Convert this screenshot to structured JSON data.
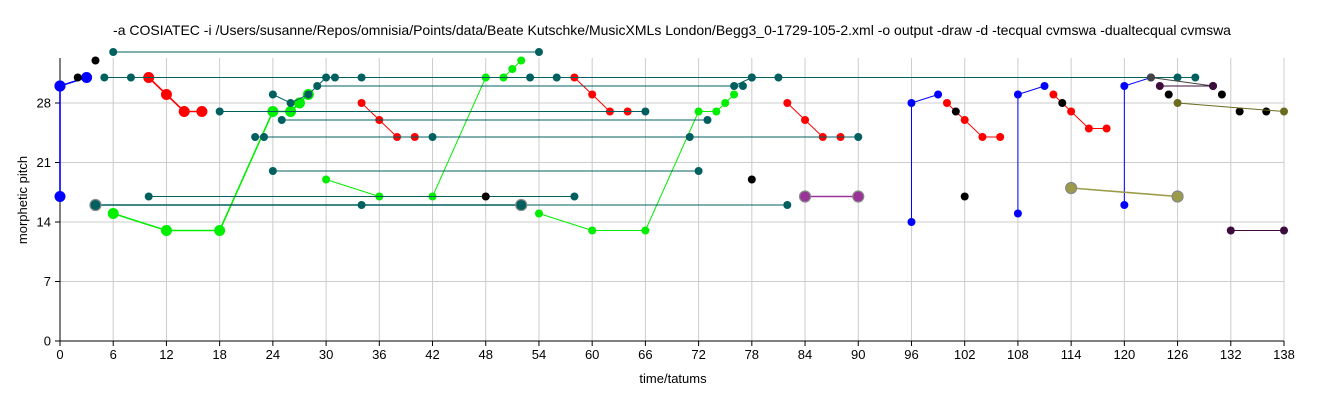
{
  "chart_data": {
    "type": "scatter",
    "title": "-a COSIATEC -i /Users/susanne/Repos/omnisia/Points/data/Beate Kutschke/MusicXMLs London/Begg3_0-1729-105-2.xml -o output -draw -d -tecqual cvmswa -dualtecqual cvmswa",
    "xlabel": "time/tatums",
    "ylabel": "morphetic pitch",
    "xlim": [
      0,
      138
    ],
    "ylim": [
      0,
      33
    ],
    "xticks": [
      0,
      6,
      12,
      18,
      24,
      30,
      36,
      42,
      48,
      54,
      60,
      66,
      72,
      78,
      84,
      90,
      96,
      102,
      108,
      114,
      120,
      126,
      132,
      138
    ],
    "yticks": [
      0,
      7,
      14,
      21,
      28
    ],
    "grid": true,
    "series": [
      {
        "color": "#0000ff",
        "marker_size": "medium",
        "connected": true,
        "points": [
          [
            0,
            30
          ],
          [
            3,
            31
          ],
          [
            0,
            30
          ],
          [
            0,
            17
          ]
        ]
      },
      {
        "color": "#0000ff",
        "marker_size": "small",
        "connected": true,
        "points": [
          [
            96,
            14
          ],
          [
            96,
            28
          ],
          [
            99,
            29
          ]
        ]
      },
      {
        "color": "#0000ff",
        "marker_size": "small",
        "connected": true,
        "points": [
          [
            108,
            15
          ],
          [
            108,
            29
          ],
          [
            111,
            30
          ]
        ]
      },
      {
        "color": "#0000ff",
        "marker_size": "small",
        "connected": true,
        "points": [
          [
            120,
            16
          ],
          [
            120,
            30
          ],
          [
            123,
            31
          ]
        ]
      },
      {
        "color": "#ff0000",
        "marker_size": "medium",
        "connected": true,
        "points": [
          [
            10,
            31
          ],
          [
            12,
            29
          ],
          [
            14,
            27
          ],
          [
            16,
            27
          ]
        ]
      },
      {
        "color": "#ff0000",
        "marker_size": "small",
        "connected": true,
        "points": [
          [
            34,
            28
          ],
          [
            36,
            26
          ],
          [
            38,
            24
          ],
          [
            40,
            24
          ]
        ]
      },
      {
        "color": "#ff0000",
        "marker_size": "small",
        "connected": true,
        "points": [
          [
            58,
            31
          ],
          [
            60,
            29
          ],
          [
            62,
            27
          ],
          [
            64,
            27
          ]
        ]
      },
      {
        "color": "#ff0000",
        "marker_size": "small",
        "connected": true,
        "points": [
          [
            82,
            28
          ],
          [
            84,
            26
          ],
          [
            86,
            24
          ],
          [
            88,
            24
          ]
        ]
      },
      {
        "color": "#ff0000",
        "marker_size": "small",
        "connected": true,
        "points": [
          [
            100,
            28
          ],
          [
            102,
            26
          ],
          [
            104,
            24
          ],
          [
            106,
            24
          ]
        ]
      },
      {
        "color": "#ff0000",
        "marker_size": "small",
        "connected": true,
        "points": [
          [
            112,
            29
          ],
          [
            114,
            27
          ],
          [
            116,
            25
          ],
          [
            118,
            25
          ]
        ]
      },
      {
        "color": "#00ee00",
        "marker_size": "medium",
        "connected": true,
        "points": [
          [
            6,
            15
          ],
          [
            12,
            13
          ],
          [
            18,
            13
          ],
          [
            24,
            27
          ],
          [
            26,
            27
          ],
          [
            27,
            28
          ],
          [
            28,
            29
          ]
        ]
      },
      {
        "color": "#00ee00",
        "marker_size": "small",
        "connected": true,
        "points": [
          [
            30,
            19
          ],
          [
            36,
            17
          ],
          [
            42,
            17
          ],
          [
            48,
            31
          ],
          [
            50,
            31
          ],
          [
            51,
            32
          ],
          [
            52,
            33
          ]
        ]
      },
      {
        "color": "#00ee00",
        "marker_size": "small",
        "connected": true,
        "points": [
          [
            54,
            15
          ],
          [
            60,
            13
          ],
          [
            66,
            13
          ],
          [
            72,
            27
          ],
          [
            74,
            27
          ],
          [
            75,
            28
          ],
          [
            76,
            29
          ]
        ]
      },
      {
        "color": "#006060",
        "marker_size": "small",
        "connected": true,
        "points": [
          [
            6,
            34
          ],
          [
            54,
            34
          ]
        ]
      },
      {
        "color": "#006060",
        "marker_size": "small",
        "connected": true,
        "points": [
          [
            5,
            31
          ],
          [
            8,
            31
          ],
          [
            128,
            31
          ]
        ]
      },
      {
        "color": "#006060",
        "marker_size": "small",
        "connected": true,
        "points": [
          [
            29,
            30
          ],
          [
            77,
            30
          ]
        ]
      },
      {
        "color": "#006060",
        "marker_size": "small",
        "connected": true,
        "points": [
          [
            31,
            31
          ],
          [
            34,
            31
          ]
        ]
      },
      {
        "color": "#006060",
        "marker_size": "small",
        "connected": true,
        "points": [
          [
            78,
            31
          ],
          [
            81,
            31
          ]
        ]
      },
      {
        "color": "#006060",
        "marker_size": "small",
        "connected": true,
        "points": [
          [
            53,
            31
          ],
          [
            56,
            31
          ]
        ]
      },
      {
        "color": "#006060",
        "marker_size": "small",
        "connected": true,
        "points": [
          [
            18,
            27
          ],
          [
            66,
            27
          ]
        ]
      },
      {
        "color": "#006060",
        "marker_size": "small",
        "connected": true,
        "points": [
          [
            25,
            26
          ],
          [
            73,
            26
          ]
        ]
      },
      {
        "color": "#006060",
        "marker_size": "small",
        "connected": true,
        "points": [
          [
            22,
            24
          ],
          [
            42,
            24
          ]
        ]
      },
      {
        "color": "#006060",
        "marker_size": "small",
        "connected": true,
        "points": [
          [
            23,
            24
          ],
          [
            71,
            24
          ],
          [
            90,
            24
          ]
        ]
      },
      {
        "color": "#006060",
        "marker_size": "small",
        "connected": true,
        "points": [
          [
            24,
            20
          ],
          [
            72,
            20
          ]
        ]
      },
      {
        "color": "#006060",
        "marker_size": "small",
        "connected": true,
        "points": [
          [
            10,
            17
          ],
          [
            58,
            17
          ]
        ]
      },
      {
        "color": "#006060",
        "marker_size": "small",
        "connected": true,
        "points": [
          [
            34,
            16
          ],
          [
            82,
            16
          ]
        ]
      },
      {
        "color": "#006060",
        "marker_size": "medium",
        "connected": true,
        "points": [
          [
            4,
            16
          ],
          [
            52,
            16
          ]
        ]
      },
      {
        "color": "#006060",
        "marker_size": "small",
        "connected": true,
        "points": [
          [
            24,
            29
          ],
          [
            26,
            28
          ],
          [
            28,
            29
          ],
          [
            30,
            31
          ]
        ]
      },
      {
        "color": "#006060",
        "marker_size": "small",
        "connected": true,
        "points": [
          [
            76,
            30
          ],
          [
            78,
            31
          ]
        ]
      },
      {
        "color": "#006060",
        "marker_size": "small",
        "connected": true,
        "points": [
          [
            126,
            31
          ]
        ]
      },
      {
        "color": "#000000",
        "marker_size": "small",
        "connected": false,
        "points": [
          [
            2,
            31
          ],
          [
            4,
            33
          ],
          [
            48,
            17
          ],
          [
            78,
            19
          ],
          [
            101,
            27
          ],
          [
            102,
            17
          ],
          [
            113,
            28
          ],
          [
            125,
            29
          ],
          [
            131,
            29
          ],
          [
            133,
            27
          ],
          [
            136,
            27
          ]
        ]
      },
      {
        "color": "#993399",
        "marker_size": "medium",
        "connected": true,
        "points": [
          [
            84,
            17
          ],
          [
            90,
            17
          ]
        ]
      },
      {
        "color": "#444444",
        "marker_size": "small",
        "connected": true,
        "points": [
          [
            123,
            31
          ],
          [
            130,
            30
          ]
        ]
      },
      {
        "color": "#3d0c3d",
        "marker_size": "small",
        "connected": true,
        "points": [
          [
            124,
            30
          ],
          [
            130,
            30
          ]
        ]
      },
      {
        "color": "#3d0c3d",
        "marker_size": "small",
        "connected": true,
        "points": [
          [
            132,
            13
          ],
          [
            138,
            13
          ]
        ]
      },
      {
        "color": "#6b6b20",
        "marker_size": "small",
        "connected": true,
        "points": [
          [
            126,
            28
          ],
          [
            138,
            27
          ]
        ]
      },
      {
        "color": "#9b9b4a",
        "marker_size": "medium",
        "connected": true,
        "points": [
          [
            114,
            18
          ],
          [
            126,
            17
          ]
        ]
      }
    ]
  }
}
